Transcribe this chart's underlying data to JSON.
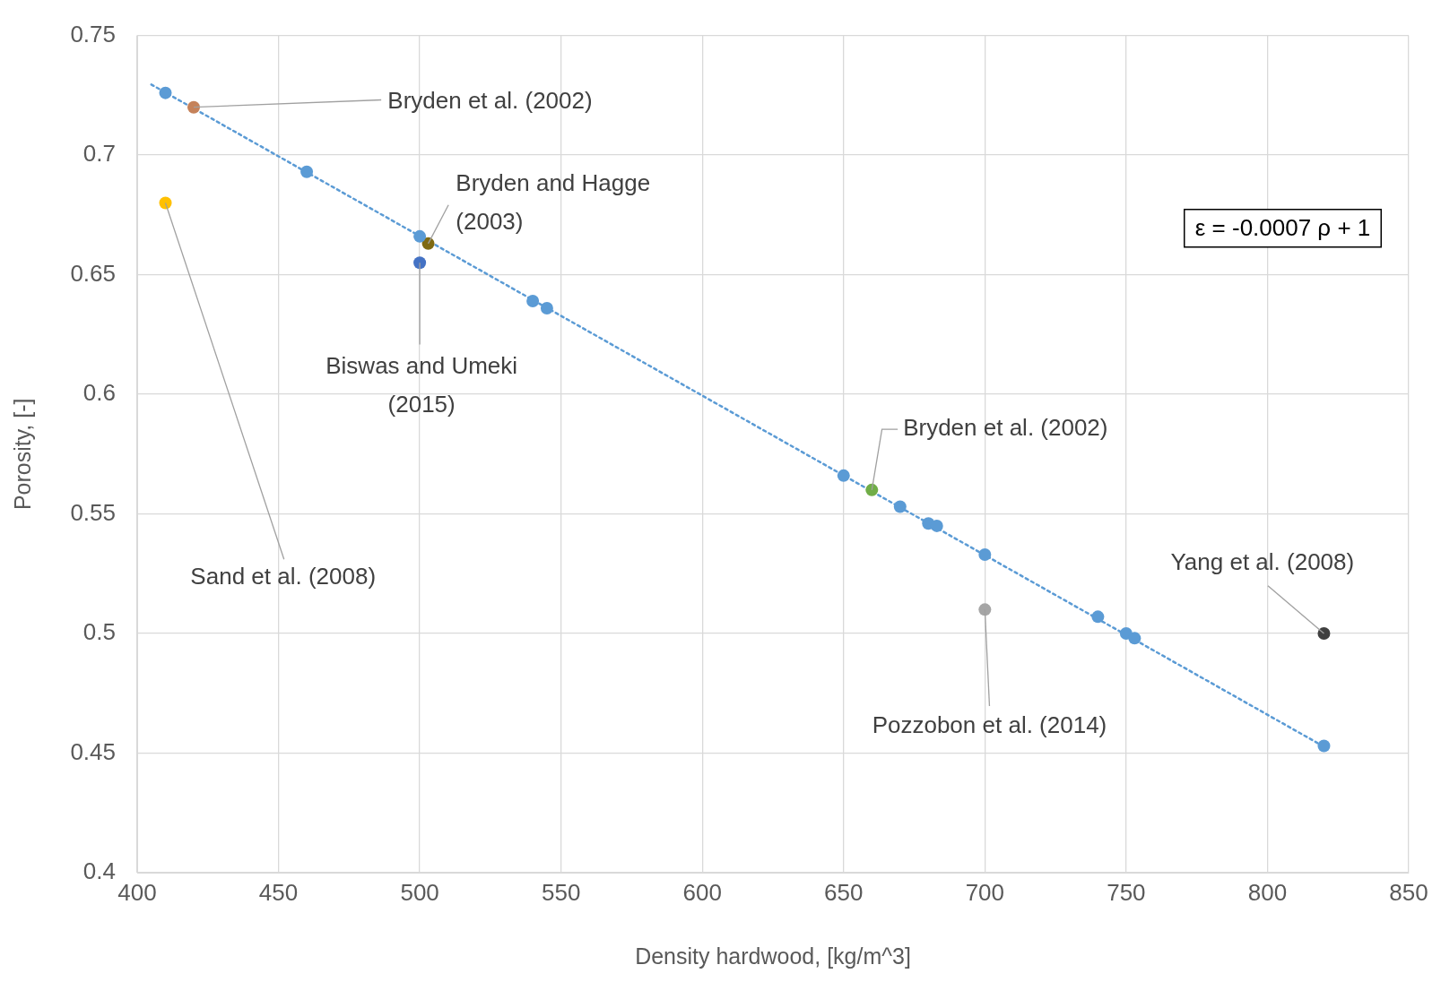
{
  "chart_data": {
    "type": "scatter",
    "xlabel": "Density hardwood, [kg/m^3]",
    "ylabel": "Porosity, [-]",
    "xlim": [
      400,
      850
    ],
    "xticks": [
      400,
      450,
      500,
      550,
      600,
      650,
      700,
      750,
      800,
      850
    ],
    "ylim": [
      0.4,
      0.75
    ],
    "yticks": [
      0.4,
      0.45,
      0.5,
      0.55,
      0.6,
      0.65,
      0.7,
      0.75
    ],
    "grid": true,
    "legend": false,
    "marker": "circle",
    "annotations": [
      "ε = -0.0007 ρ + 1"
    ],
    "series": [
      {
        "color": "#5b9bd5",
        "x": [
          410,
          460,
          500,
          540,
          545,
          650,
          670,
          680,
          683,
          700,
          740,
          750,
          753,
          820
        ],
        "values": [
          0.726,
          0.693,
          0.666,
          0.639,
          0.636,
          0.566,
          0.553,
          0.546,
          0.545,
          0.533,
          0.507,
          0.5,
          0.498,
          0.453
        ]
      },
      {
        "name": "Bryden et al. (2002)",
        "color": "#c5825a",
        "x": [
          420
        ],
        "values": [
          0.72
        ]
      },
      {
        "name": "Bryden and Hagge (2003)",
        "color": "#7f6a12",
        "x": [
          503
        ],
        "values": [
          0.663
        ]
      },
      {
        "name": "Biswas and Umeki (2015)",
        "color": "#4472c4",
        "x": [
          500
        ],
        "values": [
          0.655
        ]
      },
      {
        "name": "Bryden et al. (2002)",
        "color": "#70ad47",
        "x": [
          660
        ],
        "values": [
          0.56
        ]
      },
      {
        "name": "Sand et al. (2008)",
        "color": "#ffc000",
        "x": [
          410
        ],
        "values": [
          0.68
        ]
      },
      {
        "name": "Pozzobon et al. (2014)",
        "color": "#a5a5a5",
        "x": [
          700
        ],
        "values": [
          0.51
        ]
      },
      {
        "name": "Yang et al. (2008)",
        "color": "#404040",
        "x": [
          820
        ],
        "values": [
          0.5
        ]
      },
      {
        "type": "line",
        "color": "#5b9bd5",
        "line_style": "dotted",
        "marker": "none",
        "x": [
          405,
          820
        ],
        "values": [
          0.7295,
          0.4527
        ]
      }
    ]
  }
}
